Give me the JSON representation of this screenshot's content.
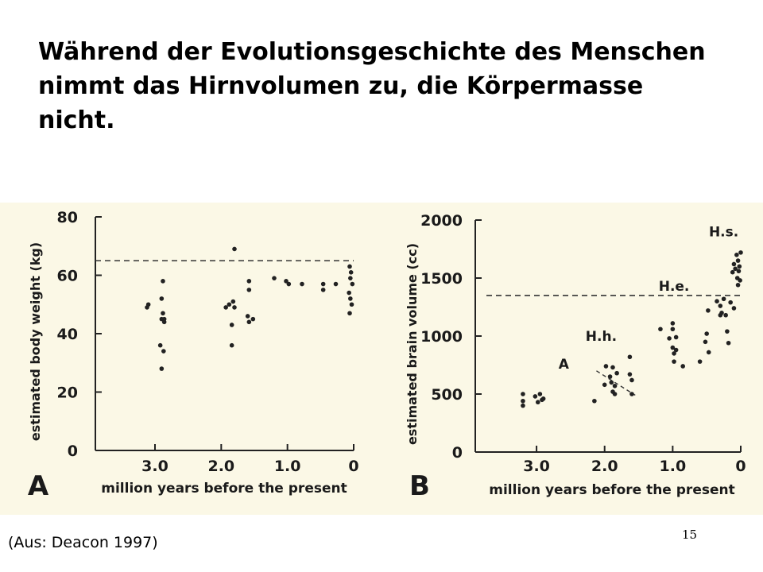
{
  "slide": {
    "title": "Während der Evolutionsgeschichte des Menschen nimmt das Hirnvolumen zu, die Körpermasse nicht.",
    "caption": "(Aus: Deacon 1997)",
    "page_number": "15"
  },
  "chart_data": [
    {
      "type": "scatter",
      "panel_label": "A",
      "xlabel": "million years before the present",
      "ylabel": "estimated body weight (kg)",
      "xlim": [
        3.9,
        0
      ],
      "ylim": [
        0,
        80
      ],
      "xticks": [
        3.0,
        2.0,
        1.0,
        0
      ],
      "xtick_labels": [
        "3.0",
        "2.0",
        "1.0",
        "0"
      ],
      "yticks": [
        0,
        20,
        40,
        60,
        80
      ],
      "ytick_labels": [
        "0",
        "20",
        "40",
        "60",
        "80"
      ],
      "reference_line": {
        "y": 65,
        "style": "dashed"
      },
      "annotations": [],
      "points": [
        [
          3.12,
          49
        ],
        [
          3.1,
          50
        ],
        [
          2.88,
          58
        ],
        [
          2.9,
          52
        ],
        [
          2.88,
          47
        ],
        [
          2.9,
          45
        ],
        [
          2.86,
          44
        ],
        [
          2.92,
          36
        ],
        [
          2.87,
          34
        ],
        [
          2.9,
          28
        ],
        [
          2.86,
          45
        ],
        [
          1.93,
          49
        ],
        [
          1.88,
          50
        ],
        [
          1.82,
          51
        ],
        [
          1.8,
          49
        ],
        [
          1.84,
          43
        ],
        [
          1.84,
          36
        ],
        [
          1.8,
          69
        ],
        [
          1.58,
          58
        ],
        [
          1.58,
          55
        ],
        [
          1.6,
          46
        ],
        [
          1.58,
          44
        ],
        [
          1.52,
          45
        ],
        [
          1.2,
          59
        ],
        [
          1.02,
          58
        ],
        [
          0.98,
          57
        ],
        [
          0.78,
          57
        ],
        [
          0.46,
          57
        ],
        [
          0.46,
          55
        ],
        [
          0.27,
          57
        ],
        [
          0.06,
          63
        ],
        [
          0.04,
          61
        ],
        [
          0.05,
          59
        ],
        [
          0.02,
          57
        ],
        [
          0.07,
          54
        ],
        [
          0.05,
          52
        ],
        [
          0.03,
          50
        ],
        [
          0.06,
          47
        ]
      ]
    },
    {
      "type": "scatter",
      "panel_label": "B",
      "xlabel": "million years before the present",
      "ylabel": "estimated brain volume (cc)",
      "xlim": [
        3.9,
        0
      ],
      "ylim": [
        0,
        2000
      ],
      "xticks": [
        3.0,
        2.0,
        1.0,
        0
      ],
      "xtick_labels": [
        "3.0",
        "2.0",
        "1.0",
        "0"
      ],
      "yticks": [
        0,
        500,
        1000,
        1500,
        2000
      ],
      "ytick_labels": [
        "0",
        "500",
        "1000",
        "1500",
        "2000"
      ],
      "reference_line": {
        "y": 1350,
        "style": "dashed"
      },
      "trend_line": {
        "from": [
          2.12,
          700
        ],
        "to": [
          1.55,
          490
        ],
        "style": "dashed"
      },
      "annotations": [
        {
          "text": "A",
          "x": 2.6,
          "y": 720
        },
        {
          "text": "H.h.",
          "x": 2.05,
          "y": 960
        },
        {
          "text": "H.e.",
          "x": 0.98,
          "y": 1390
        },
        {
          "text": "H.s.",
          "x": 0.25,
          "y": 1860
        }
      ],
      "points": [
        [
          3.2,
          500
        ],
        [
          3.2,
          440
        ],
        [
          3.2,
          400
        ],
        [
          3.02,
          480
        ],
        [
          2.98,
          430
        ],
        [
          2.95,
          500
        ],
        [
          2.92,
          450
        ],
        [
          2.9,
          460
        ],
        [
          2.15,
          440
        ],
        [
          2.0,
          580
        ],
        [
          1.98,
          740
        ],
        [
          1.92,
          650
        ],
        [
          1.9,
          600
        ],
        [
          1.88,
          730
        ],
        [
          1.88,
          520
        ],
        [
          1.85,
          570
        ],
        [
          1.82,
          680
        ],
        [
          1.85,
          500
        ],
        [
          1.63,
          820
        ],
        [
          1.63,
          670
        ],
        [
          1.6,
          620
        ],
        [
          1.6,
          500
        ],
        [
          1.18,
          1060
        ],
        [
          1.05,
          980
        ],
        [
          1.0,
          1110
        ],
        [
          1.0,
          1060
        ],
        [
          1.0,
          900
        ],
        [
          0.98,
          850
        ],
        [
          0.98,
          780
        ],
        [
          0.95,
          880
        ],
        [
          0.95,
          990
        ],
        [
          0.85,
          740
        ],
        [
          0.6,
          780
        ],
        [
          0.52,
          950
        ],
        [
          0.5,
          1020
        ],
        [
          0.48,
          1220
        ],
        [
          0.47,
          860
        ],
        [
          0.35,
          1300
        ],
        [
          0.3,
          1260
        ],
        [
          0.3,
          1180
        ],
        [
          0.28,
          1200
        ],
        [
          0.25,
          1320
        ],
        [
          0.22,
          1180
        ],
        [
          0.2,
          1040
        ],
        [
          0.18,
          940
        ],
        [
          0.15,
          1290
        ],
        [
          0.12,
          1550
        ],
        [
          0.1,
          1620
        ],
        [
          0.1,
          1240
        ],
        [
          0.08,
          1580
        ],
        [
          0.06,
          1700
        ],
        [
          0.05,
          1500
        ],
        [
          0.04,
          1650
        ],
        [
          0.04,
          1440
        ],
        [
          0.03,
          1560
        ],
        [
          0.02,
          1600
        ],
        [
          0.01,
          1480
        ],
        [
          0.0,
          1720
        ]
      ]
    }
  ]
}
